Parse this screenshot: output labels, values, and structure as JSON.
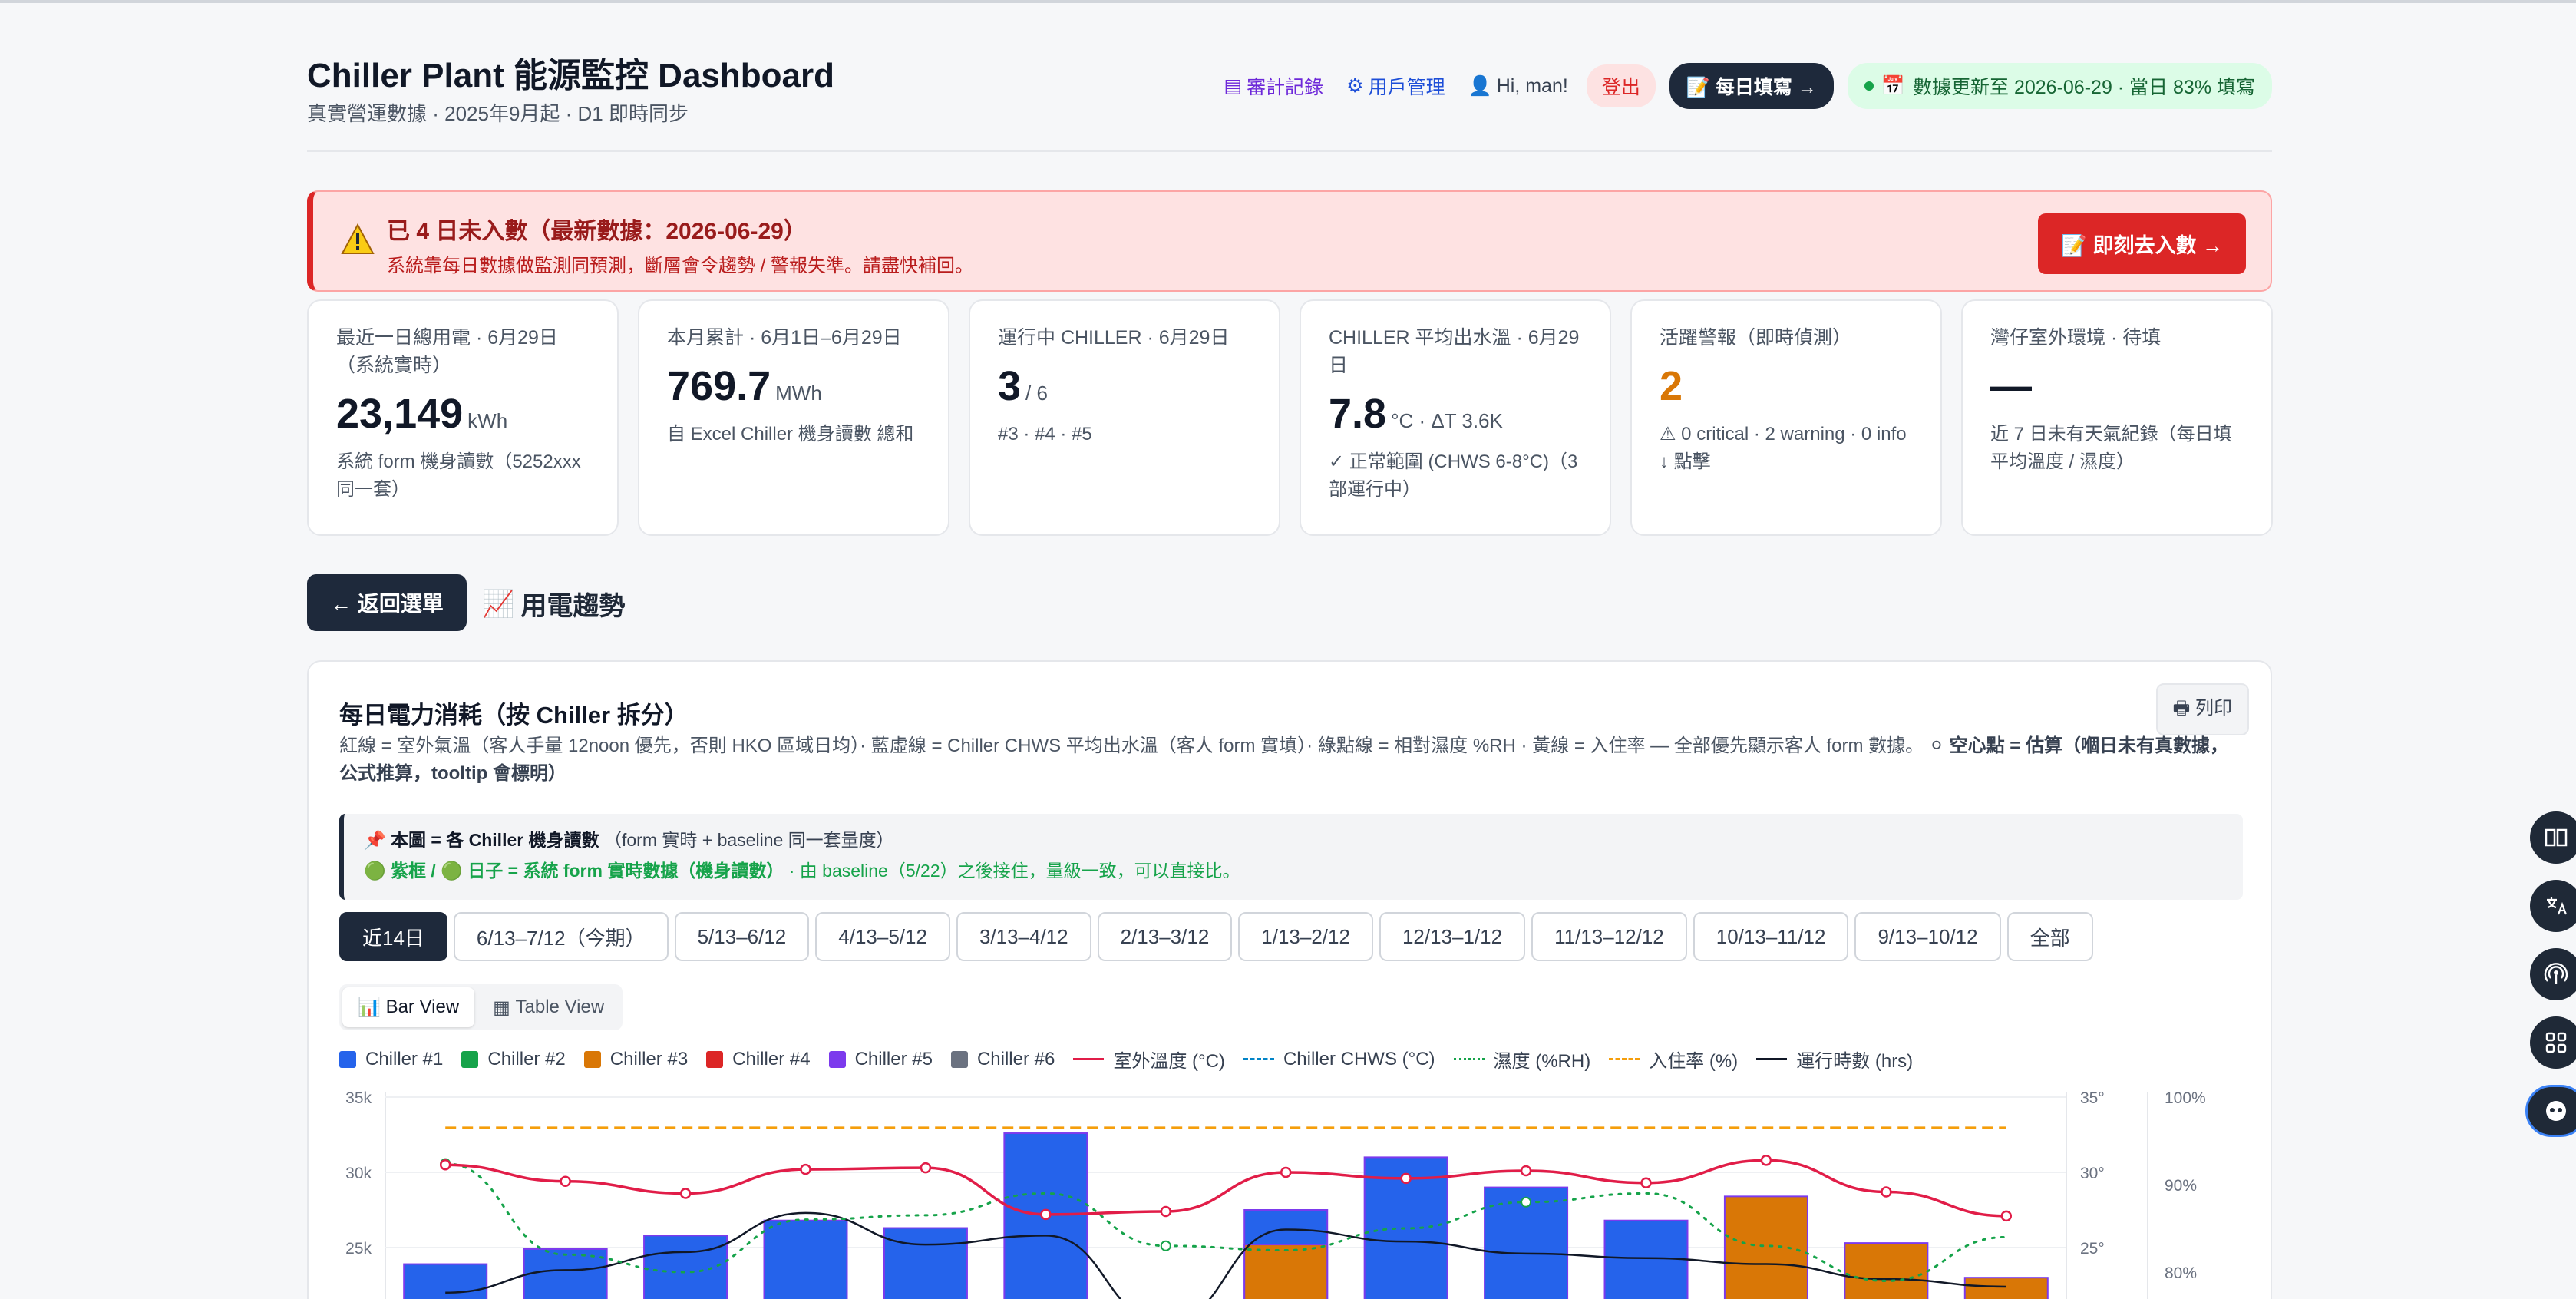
{
  "header": {
    "title": "Chiller Plant 能源監控 Dashboard",
    "subtitle": "真實營運數據 · 2025年9月起 · D1 即時同步",
    "audit_link": "審計記錄",
    "users_link": "用戶管理",
    "greeting": "Hi, man!",
    "logout": "登出",
    "daily_btn": "每日填寫 →",
    "update_status": "數據更新至 2026-06-29 · 當日 83% 填寫"
  },
  "alert": {
    "title": "已 4 日未入數（最新數據：2026-06-29）",
    "message": "系統靠每日數據做監測同預測，斷層會令趨勢 / 警報失準。請盡快補回。",
    "button": "即刻去入數 →"
  },
  "kpis": [
    {
      "label": "最近一日總用電 · 6月29日（系統實時）",
      "value": "23,149",
      "unit": "kWh",
      "note": "系統 form 機身讀數（5252xxx 同一套）"
    },
    {
      "label": "本月累計 · 6月1日–6月29日",
      "value": "769.7",
      "unit": "MWh",
      "note": "自 Excel Chiller 機身讀數 總和"
    },
    {
      "label": "運行中 CHILLER · 6月29日",
      "value": "3",
      "unit": "/ 6",
      "note": "#3 · #4 · #5"
    },
    {
      "label": "CHILLER 平均出水溫 · 6月29日",
      "value": "7.8",
      "unit": "°C · ΔT 3.6K",
      "note": "✓ 正常範圍 (CHWS 6-8°C)（3 部運行中）"
    },
    {
      "label": "活躍警報（即時偵測）",
      "value": "2",
      "unit": "",
      "note": "⚠ 0 critical · 2 warning · 0 info　↓ 點擊"
    },
    {
      "label": "灣仔室外環境 · 待填",
      "value": "—",
      "unit": "",
      "note": "近 7 日未有天氣紀錄（每日填平均溫度 / 濕度）"
    }
  ],
  "nav": {
    "back": "← 返回選單",
    "section": "用電趨勢"
  },
  "card": {
    "title": "每日電力消耗（按 Chiller 拆分）",
    "print": "列印",
    "desc_plain": "紅線 = 室外氣溫（客人手量 12noon 優先，否則 HKO 區域日均）· 藍虛線 = Chiller CHWS 平均出水溫（客人 form 實填）· 綠點線 = 相對濕度 %RH · 黃線 = 入住率 — 全部優先顯示客人 form 數據。",
    "desc_bold": "空心點 = 估算（嗰日未有真數據，公式推算，tooltip 會標明）",
    "note_line1_bold": "本圖 = 各 Chiller 機身讀數",
    "note_line1_rest": "（form 實時 + baseline 同一套量度）",
    "note_line2_bold": "紫框 / 🟢 日子 = 系統 form 實時數據（機身讀數）",
    "note_line2_rest": " · 由 baseline（5/22）之後接住，量級一致，可以直接比。"
  },
  "ranges": [
    "近14日",
    "6/13–7/12（今期）",
    "5/13–6/12",
    "4/13–5/12",
    "3/13–4/12",
    "2/13–3/12",
    "1/13–2/12",
    "12/13–1/12",
    "11/13–12/12",
    "10/13–11/12",
    "9/13–10/12",
    "全部"
  ],
  "views": [
    "Bar View",
    "Table View"
  ],
  "legend": [
    {
      "label": "Chiller #1",
      "color": "#2563eb",
      "kind": "bar"
    },
    {
      "label": "Chiller #2",
      "color": "#16a34a",
      "kind": "bar"
    },
    {
      "label": "Chiller #3",
      "color": "#d97706",
      "kind": "bar"
    },
    {
      "label": "Chiller #4",
      "color": "#dc2626",
      "kind": "bar"
    },
    {
      "label": "Chiller #5",
      "color": "#7c3aed",
      "kind": "bar"
    },
    {
      "label": "Chiller #6",
      "color": "#6b7280",
      "kind": "bar"
    },
    {
      "label": "室外溫度 (°C)",
      "color": "#e11d48",
      "kind": "line"
    },
    {
      "label": "Chiller CHWS (°C)",
      "color": "#0284c7",
      "kind": "dash"
    },
    {
      "label": "濕度 (%RH)",
      "color": "#16a34a",
      "kind": "dot"
    },
    {
      "label": "入住率 (%)",
      "color": "#f59e0b",
      "kind": "dash"
    },
    {
      "label": "運行時數 (hrs)",
      "color": "#111827",
      "kind": "line"
    }
  ],
  "chart_data": {
    "type": "bar",
    "y_left_ticks": [
      "35k",
      "30k",
      "25k"
    ],
    "y_temp_ticks": [
      "35°",
      "30°",
      "25°"
    ],
    "y_pct_ticks": [
      "100%",
      "90%",
      "80%"
    ],
    "ylim_left": [
      20000,
      35000
    ],
    "ylim_temp": [
      20,
      35
    ],
    "ylim_pct": [
      75,
      100
    ],
    "series": [
      {
        "name": "Chiller #1",
        "color": "#2563eb",
        "values": [
          23900,
          24900,
          25800,
          26800,
          26300,
          32600,
          18000,
          27500,
          31000,
          29000,
          26800,
          null,
          null,
          null
        ]
      },
      {
        "name": "Chiller #3",
        "color": "#d97706",
        "values": [
          null,
          null,
          null,
          null,
          null,
          null,
          null,
          25200,
          null,
          null,
          null,
          28400,
          25300,
          23000
        ]
      }
    ],
    "outdoor_temp": [
      30.5,
      29.4,
      28.6,
      30.2,
      30.3,
      27.2,
      27.4,
      30.0,
      29.6,
      30.1,
      29.3,
      30.8,
      28.7,
      27.1
    ],
    "humidity": [
      92.4,
      82.0,
      80.0,
      86.0,
      86.5,
      89.0,
      83.0,
      82.5,
      85.0,
      88.0,
      89.0,
      83.0,
      79.0,
      84.0
    ],
    "occupancy": [
      96.5,
      96.5,
      96.5,
      96.5,
      96.5,
      96.5,
      96.5,
      96.5,
      96.5,
      96.5,
      96.5,
      96.5,
      96.5,
      96.5
    ],
    "run_hours_visible": [
      20,
      21.5,
      22.7,
      25.3,
      23.2,
      23.8,
      18.0,
      24.2,
      23.4,
      22.6,
      22.3,
      21.9,
      20.9,
      20.4
    ]
  },
  "colors": {
    "navy": "#1e293b",
    "alert_red": "#dc2626",
    "warn_orange": "#d97706"
  }
}
